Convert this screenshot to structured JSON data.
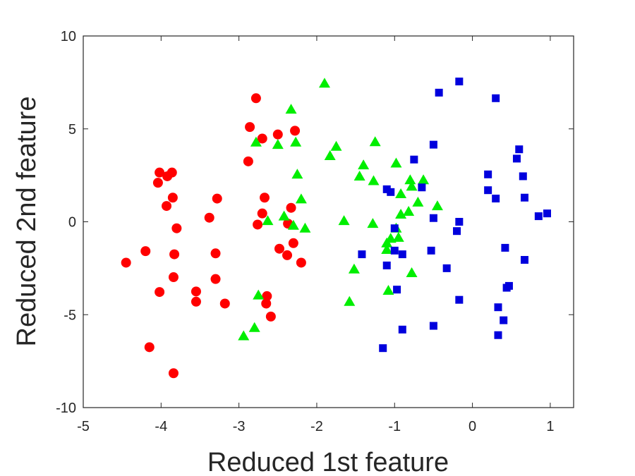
{
  "chart_data": {
    "type": "scatter",
    "title": "",
    "xlabel": "Reduced 1st feature",
    "ylabel": "Reduced 2nd feature",
    "xlim": [
      -5,
      1.3
    ],
    "ylim": [
      -10,
      10
    ],
    "xticks": [
      -5,
      -4,
      -3,
      -2,
      -1,
      0,
      1
    ],
    "yticks": [
      -10,
      -5,
      0,
      5,
      10
    ],
    "grid": false,
    "legend": "none",
    "series": [
      {
        "marker": "circle",
        "color": "#ff0000",
        "points": [
          [
            -2.78,
            6.65
          ],
          [
            -2.86,
            5.1
          ],
          [
            -2.7,
            4.48
          ],
          [
            -2.5,
            4.7
          ],
          [
            -2.28,
            4.9
          ],
          [
            -2.88,
            3.25
          ],
          [
            -4.02,
            2.65
          ],
          [
            -3.92,
            2.45
          ],
          [
            -3.86,
            2.65
          ],
          [
            -4.04,
            2.1
          ],
          [
            -3.85,
            1.3
          ],
          [
            -3.93,
            0.85
          ],
          [
            -3.8,
            -0.35
          ],
          [
            -3.28,
            1.25
          ],
          [
            -3.38,
            0.22
          ],
          [
            -2.67,
            1.3
          ],
          [
            -2.7,
            0.45
          ],
          [
            -2.76,
            -0.15
          ],
          [
            -2.33,
            0.75
          ],
          [
            -2.37,
            -0.1
          ],
          [
            -2.3,
            -1.15
          ],
          [
            -2.48,
            -1.45
          ],
          [
            -2.38,
            -1.8
          ],
          [
            -2.2,
            -2.2
          ],
          [
            -4.45,
            -2.2
          ],
          [
            -4.2,
            -1.58
          ],
          [
            -3.83,
            -1.75
          ],
          [
            -3.3,
            -1.7
          ],
          [
            -3.84,
            -2.98
          ],
          [
            -3.3,
            -3.08
          ],
          [
            -4.02,
            -3.78
          ],
          [
            -3.55,
            -3.75
          ],
          [
            -3.55,
            -4.3
          ],
          [
            -3.18,
            -4.4
          ],
          [
            -2.64,
            -4.0
          ],
          [
            -2.65,
            -4.4
          ],
          [
            -2.59,
            -5.1
          ],
          [
            -4.15,
            -6.75
          ],
          [
            -3.84,
            -8.15
          ]
        ]
      },
      {
        "marker": "triangle",
        "color": "#00ee00",
        "points": [
          [
            -1.9,
            7.45
          ],
          [
            -2.33,
            6.05
          ],
          [
            -2.78,
            4.28
          ],
          [
            -2.5,
            4.15
          ],
          [
            -2.27,
            4.28
          ],
          [
            -1.75,
            4.05
          ],
          [
            -1.83,
            3.55
          ],
          [
            -1.25,
            4.3
          ],
          [
            -1.4,
            3.05
          ],
          [
            -1.45,
            2.45
          ],
          [
            -1.27,
            2.2
          ],
          [
            -0.98,
            3.15
          ],
          [
            -0.8,
            2.25
          ],
          [
            -0.78,
            1.9
          ],
          [
            -0.63,
            2.25
          ],
          [
            -0.92,
            1.5
          ],
          [
            -0.7,
            1.05
          ],
          [
            -0.45,
            0.85
          ],
          [
            -0.82,
            0.55
          ],
          [
            -0.92,
            0.4
          ],
          [
            -2.25,
            2.55
          ],
          [
            -2.2,
            1.22
          ],
          [
            -2.42,
            0.3
          ],
          [
            -2.63,
            0.05
          ],
          [
            -2.3,
            -0.2
          ],
          [
            -2.15,
            -0.35
          ],
          [
            -1.65,
            0.05
          ],
          [
            -1.28,
            -0.1
          ],
          [
            -0.98,
            -0.35
          ],
          [
            -1.05,
            -0.9
          ],
          [
            -0.95,
            -0.85
          ],
          [
            -1.1,
            -1.15
          ],
          [
            -1.1,
            -1.5
          ],
          [
            -1.52,
            -2.55
          ],
          [
            -1.58,
            -4.3
          ],
          [
            -0.78,
            -2.75
          ],
          [
            -1.08,
            -3.7
          ],
          [
            -2.75,
            -3.95
          ],
          [
            -2.8,
            -5.7
          ],
          [
            -2.94,
            -6.15
          ]
        ]
      },
      {
        "marker": "square",
        "color": "#0000dd",
        "points": [
          [
            -0.17,
            7.55
          ],
          [
            -0.43,
            6.95
          ],
          [
            0.3,
            6.65
          ],
          [
            -0.5,
            4.15
          ],
          [
            -0.75,
            3.35
          ],
          [
            -0.65,
            1.85
          ],
          [
            -1.1,
            1.75
          ],
          [
            -1.05,
            1.6
          ],
          [
            0.2,
            2.55
          ],
          [
            0.2,
            1.7
          ],
          [
            0.3,
            1.25
          ],
          [
            0.6,
            3.9
          ],
          [
            0.57,
            3.4
          ],
          [
            0.65,
            2.45
          ],
          [
            0.67,
            1.3
          ],
          [
            0.85,
            0.3
          ],
          [
            0.96,
            0.45
          ],
          [
            -0.5,
            0.2
          ],
          [
            -0.2,
            -0.5
          ],
          [
            -0.17,
            0.0
          ],
          [
            -1.0,
            -0.35
          ],
          [
            -1.42,
            -1.75
          ],
          [
            -1.0,
            -1.55
          ],
          [
            -0.9,
            -1.75
          ],
          [
            -0.53,
            -1.55
          ],
          [
            -1.1,
            -2.35
          ],
          [
            -0.33,
            -2.5
          ],
          [
            0.42,
            -1.4
          ],
          [
            0.67,
            -2.05
          ],
          [
            -0.97,
            -3.65
          ],
          [
            -0.17,
            -4.2
          ],
          [
            0.44,
            -3.55
          ],
          [
            0.47,
            -3.45
          ],
          [
            0.33,
            -4.6
          ],
          [
            0.4,
            -5.3
          ],
          [
            0.33,
            -6.1
          ],
          [
            -0.5,
            -5.6
          ],
          [
            -0.9,
            -5.8
          ],
          [
            -1.15,
            -6.8
          ]
        ]
      }
    ]
  }
}
